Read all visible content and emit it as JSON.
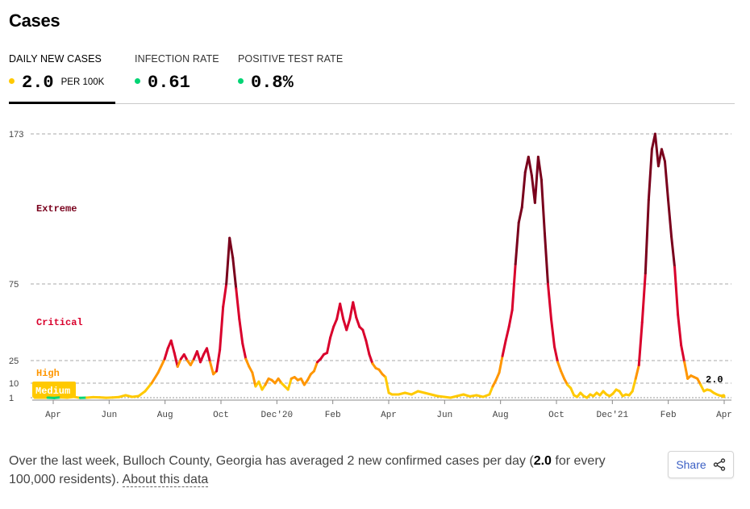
{
  "header": {
    "title": "Cases"
  },
  "tabs": [
    {
      "label": "DAILY NEW CASES",
      "value": "2.0",
      "unit": "PER 100K",
      "dot_color": "#ffc900",
      "active": true
    },
    {
      "label": "INFECTION RATE",
      "value": "0.61",
      "unit": "",
      "dot_color": "#00d474",
      "active": false
    },
    {
      "label": "POSITIVE TEST RATE",
      "value": "0.8%",
      "unit": "",
      "dot_color": "#00d474",
      "active": false
    }
  ],
  "chart_data": {
    "type": "line",
    "title": "",
    "xlabel": "",
    "ylabel": "",
    "y_ticks": [
      1,
      10,
      25,
      75,
      173
    ],
    "ylim": [
      0,
      173
    ],
    "x_ticks": [
      "Apr",
      "Jun",
      "Aug",
      "Oct",
      "Dec'20",
      "Feb",
      "Apr",
      "Jun",
      "Aug",
      "Oct",
      "Dec'21",
      "Feb",
      "Apr"
    ],
    "grid": true,
    "last_value_label": "2.0",
    "zones": [
      {
        "name": "Medium",
        "from": 1,
        "to": 10,
        "color": "#ffc900"
      },
      {
        "name": "High",
        "from": 10,
        "to": 25,
        "color": "#ff9600"
      },
      {
        "name": "Critical",
        "from": 25,
        "to": 75,
        "color": "#d9002c"
      },
      {
        "name": "Extreme",
        "from": 75,
        "to": 173,
        "color": "#79001c"
      }
    ],
    "series": [
      {
        "values": [
          [
            0,
            1
          ],
          [
            4,
            1
          ],
          [
            6,
            0.6
          ],
          [
            8,
            1.2
          ],
          [
            10,
            1
          ],
          [
            12,
            1.5
          ],
          [
            14,
            0.8
          ],
          [
            16,
            1
          ],
          [
            18,
            1.3
          ],
          [
            20,
            1.2
          ],
          [
            22,
            0.9
          ],
          [
            24,
            1.1
          ],
          [
            26,
            1.4
          ],
          [
            28,
            2.5
          ],
          [
            30,
            1.5
          ],
          [
            32,
            2
          ],
          [
            34,
            5
          ],
          [
            36,
            10
          ],
          [
            38,
            17
          ],
          [
            40,
            26
          ],
          [
            41,
            33
          ],
          [
            42,
            38
          ],
          [
            43,
            30
          ],
          [
            44,
            21
          ],
          [
            45,
            26
          ],
          [
            46,
            29
          ],
          [
            47,
            25
          ],
          [
            48,
            22
          ],
          [
            49,
            26
          ],
          [
            50,
            31
          ],
          [
            51,
            24
          ],
          [
            52,
            29
          ],
          [
            53,
            33
          ],
          [
            54,
            24
          ],
          [
            55,
            16
          ],
          [
            56,
            18
          ],
          [
            57,
            32
          ],
          [
            58,
            60
          ],
          [
            59,
            75
          ],
          [
            60,
            105
          ],
          [
            61,
            92
          ],
          [
            62,
            72
          ],
          [
            63,
            52
          ],
          [
            64,
            36
          ],
          [
            65,
            26
          ],
          [
            66,
            21
          ],
          [
            67,
            17
          ],
          [
            68,
            8
          ],
          [
            69,
            11
          ],
          [
            70,
            6
          ],
          [
            71,
            9
          ],
          [
            72,
            13
          ],
          [
            73,
            12
          ],
          [
            74,
            10
          ],
          [
            75,
            13
          ],
          [
            76,
            10
          ],
          [
            77,
            8
          ],
          [
            78,
            6
          ],
          [
            79,
            13
          ],
          [
            80,
            14
          ],
          [
            81,
            12
          ],
          [
            82,
            13
          ],
          [
            83,
            9
          ],
          [
            84,
            12
          ],
          [
            85,
            16
          ],
          [
            86,
            18
          ],
          [
            87,
            24
          ],
          [
            88,
            26
          ],
          [
            89,
            29
          ],
          [
            90,
            30
          ],
          [
            91,
            40
          ],
          [
            92,
            47
          ],
          [
            93,
            52
          ],
          [
            94,
            62
          ],
          [
            95,
            52
          ],
          [
            96,
            45
          ],
          [
            97,
            52
          ],
          [
            98,
            63
          ],
          [
            99,
            53
          ],
          [
            100,
            47
          ],
          [
            101,
            45
          ],
          [
            102,
            38
          ],
          [
            103,
            29
          ],
          [
            104,
            23
          ],
          [
            105,
            20
          ],
          [
            106,
            19
          ],
          [
            107,
            16
          ],
          [
            108,
            14
          ],
          [
            109,
            4
          ],
          [
            110,
            3
          ],
          [
            112,
            3
          ],
          [
            114,
            4
          ],
          [
            116,
            3
          ],
          [
            118,
            5
          ],
          [
            120,
            4
          ],
          [
            122,
            3
          ],
          [
            124,
            2
          ],
          [
            126,
            1.5
          ],
          [
            128,
            1
          ],
          [
            130,
            2
          ],
          [
            132,
            3
          ],
          [
            134,
            1.8
          ],
          [
            136,
            2.5
          ],
          [
            138,
            1.5
          ],
          [
            140,
            3
          ],
          [
            141,
            8
          ],
          [
            142,
            12
          ],
          [
            143,
            17
          ],
          [
            144,
            28
          ],
          [
            145,
            38
          ],
          [
            146,
            47
          ],
          [
            147,
            58
          ],
          [
            148,
            88
          ],
          [
            149,
            115
          ],
          [
            150,
            125
          ],
          [
            151,
            148
          ],
          [
            152,
            158
          ],
          [
            153,
            146
          ],
          [
            154,
            128
          ],
          [
            155,
            158
          ],
          [
            156,
            143
          ],
          [
            157,
            108
          ],
          [
            158,
            75
          ],
          [
            159,
            52
          ],
          [
            160,
            34
          ],
          [
            161,
            24
          ],
          [
            162,
            18
          ],
          [
            163,
            13
          ],
          [
            164,
            9
          ],
          [
            165,
            7
          ],
          [
            166,
            2.5
          ],
          [
            167,
            1.5
          ],
          [
            168,
            4
          ],
          [
            169,
            2
          ],
          [
            170,
            1
          ],
          [
            171,
            3
          ],
          [
            172,
            2
          ],
          [
            173,
            4
          ],
          [
            174,
            2.5
          ],
          [
            175,
            5
          ],
          [
            176,
            3
          ],
          [
            177,
            2
          ],
          [
            178,
            3.5
          ],
          [
            179,
            6
          ],
          [
            180,
            5
          ],
          [
            181,
            2
          ],
          [
            182,
            3
          ],
          [
            183,
            2.5
          ],
          [
            184,
            5
          ],
          [
            185,
            13
          ],
          [
            186,
            22
          ],
          [
            187,
            50
          ],
          [
            188,
            82
          ],
          [
            189,
            130
          ],
          [
            190,
            163
          ],
          [
            191,
            173
          ],
          [
            192,
            152
          ],
          [
            193,
            163
          ],
          [
            194,
            155
          ],
          [
            195,
            130
          ],
          [
            196,
            106
          ],
          [
            197,
            86
          ],
          [
            198,
            55
          ],
          [
            199,
            35
          ],
          [
            200,
            24
          ],
          [
            201,
            13
          ],
          [
            202,
            15
          ],
          [
            203,
            14
          ],
          [
            204,
            13
          ],
          [
            205,
            9
          ],
          [
            206,
            5
          ],
          [
            207,
            6
          ],
          [
            208,
            5.5
          ],
          [
            209,
            4
          ],
          [
            210,
            3
          ],
          [
            211,
            2.3
          ],
          [
            212,
            2
          ]
        ]
      }
    ]
  },
  "summary": {
    "text_before": "Over the last week, Bulloch County, Georgia has averaged 2 new confirmed cases per day (",
    "value": "2.0",
    "text_after": " for every 100,000 residents). ",
    "link_label": "About this data"
  },
  "share": {
    "label": "Share",
    "icon": "share-icon"
  }
}
